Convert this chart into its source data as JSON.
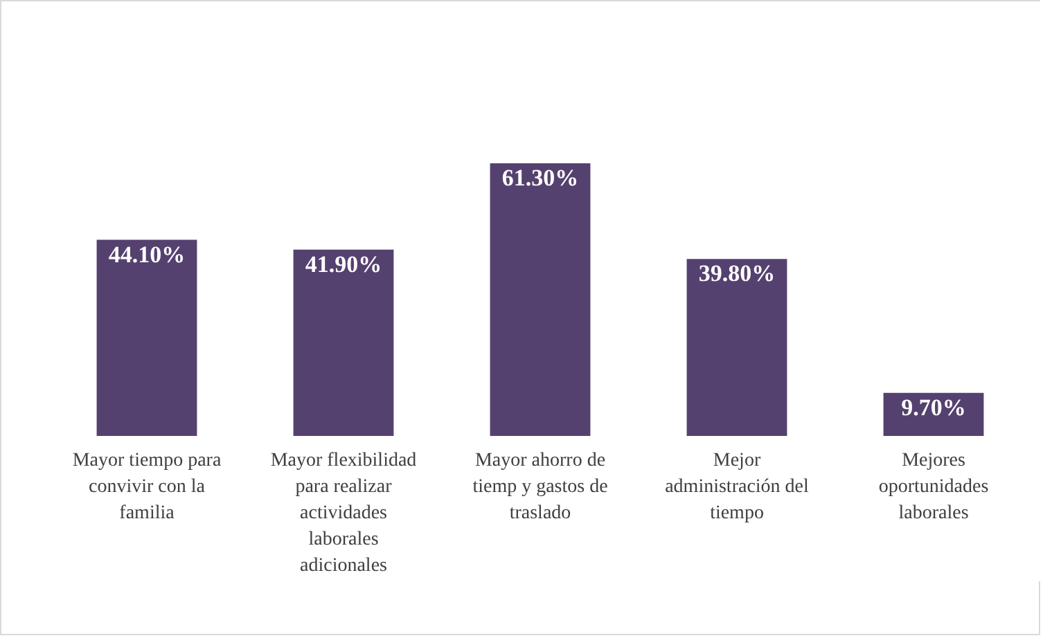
{
  "chart_data": {
    "type": "bar",
    "relative": false,
    "categories": [
      "Mayor tiempo para convivir con la familia",
      "Mayor flexibilidad para realizar actividades laborales adicionales",
      "Mayor ahorro de tiemp y gastos de traslado",
      "Mejor administración del tiempo",
      "Mejores oportunidades laborales"
    ],
    "values": [
      44.1,
      41.9,
      61.3,
      39.8,
      9.7
    ],
    "value_labels": [
      "44.10%",
      "41.90%",
      "61.30%",
      "39.80%",
      "9.70%"
    ],
    "color": "#55416f"
  }
}
